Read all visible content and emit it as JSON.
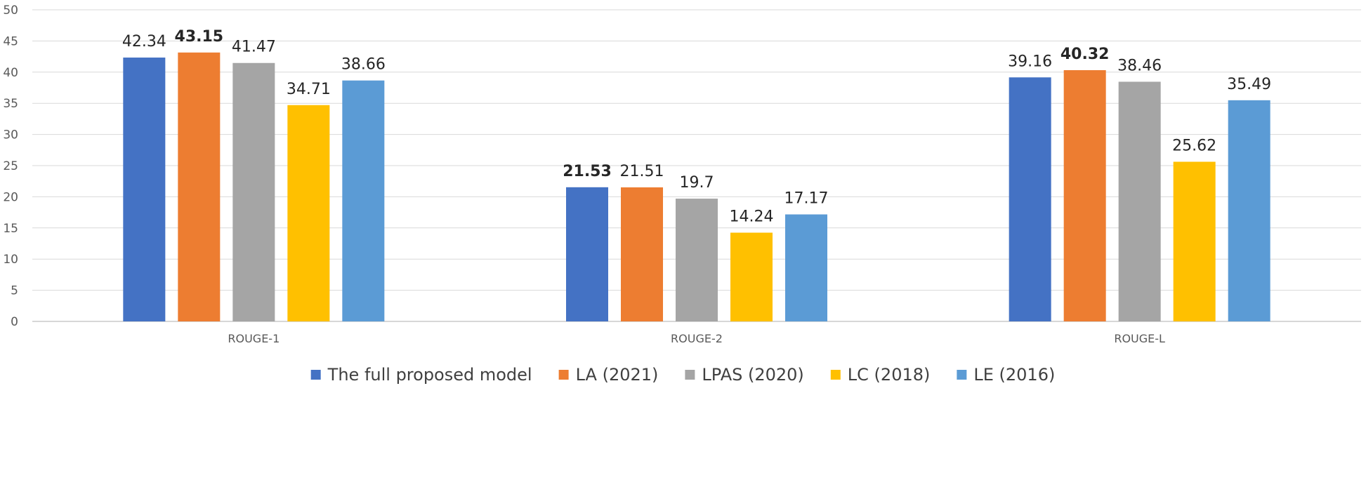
{
  "chart_data": {
    "type": "bar",
    "title": "",
    "xlabel": "",
    "ylabel": "",
    "ylim": [
      0,
      50
    ],
    "yticks": [
      0,
      5,
      10,
      15,
      20,
      25,
      30,
      35,
      40,
      45,
      50
    ],
    "grid": true,
    "legend_position": "bottom",
    "categories": [
      "ROUGE-1",
      "ROUGE-2",
      "ROUGE-L"
    ],
    "series": [
      {
        "name": "The full proposed model",
        "color": "#4472c4",
        "values": [
          42.34,
          21.53,
          39.16
        ],
        "labels": [
          "42.34",
          "21.53",
          "39.16"
        ],
        "bold": [
          false,
          true,
          false
        ]
      },
      {
        "name": "LA (2021)",
        "color": "#ed7d31",
        "values": [
          43.15,
          21.51,
          40.32
        ],
        "labels": [
          "43.15",
          "21.51",
          "40.32"
        ],
        "bold": [
          true,
          false,
          true
        ]
      },
      {
        "name": "LPAS (2020)",
        "color": "#a5a5a5",
        "values": [
          41.47,
          19.7,
          38.46
        ],
        "labels": [
          "41.47",
          "19.7",
          "38.46"
        ],
        "bold": [
          false,
          false,
          false
        ]
      },
      {
        "name": "LC (2018)",
        "color": "#ffc000",
        "values": [
          34.71,
          14.24,
          25.62
        ],
        "labels": [
          "34.71",
          "14.24",
          "25.62"
        ],
        "bold": [
          false,
          false,
          false
        ]
      },
      {
        "name": "LE (2016)",
        "color": "#5b9bd5",
        "values": [
          38.66,
          17.17,
          35.49
        ],
        "labels": [
          "38.66",
          "17.17",
          "35.49"
        ],
        "bold": [
          false,
          false,
          false
        ]
      }
    ]
  }
}
